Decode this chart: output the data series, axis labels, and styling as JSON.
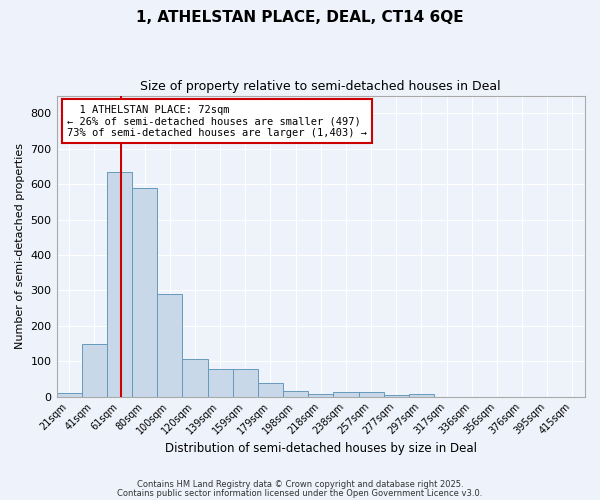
{
  "title1": "1, ATHELSTAN PLACE, DEAL, CT14 6QE",
  "title2": "Size of property relative to semi-detached houses in Deal",
  "xlabel": "Distribution of semi-detached houses by size in Deal",
  "ylabel": "Number of semi-detached properties",
  "bin_labels": [
    "21sqm",
    "41sqm",
    "61sqm",
    "80sqm",
    "100sqm",
    "120sqm",
    "139sqm",
    "159sqm",
    "179sqm",
    "198sqm",
    "218sqm",
    "238sqm",
    "257sqm",
    "277sqm",
    "297sqm",
    "317sqm",
    "336sqm",
    "356sqm",
    "376sqm",
    "395sqm",
    "415sqm"
  ],
  "bin_values": [
    10,
    148,
    635,
    590,
    290,
    105,
    78,
    78,
    37,
    15,
    8,
    12,
    12,
    5,
    7,
    0,
    0,
    0,
    0,
    0,
    0
  ],
  "property_label": "1 ATHELSTAN PLACE: 72sqm",
  "pct_smaller": 26,
  "pct_larger": 73,
  "count_smaller": 497,
  "count_larger": 1403,
  "bar_color": "#c8d8e8",
  "bar_edge_color": "#6699bb",
  "line_color": "#cc0000",
  "annotation_box_color": "#ffffff",
  "annotation_box_edge": "#cc0000",
  "background_color": "#eef2fa",
  "grid_color": "#ffffff",
  "ylim": [
    0,
    850
  ],
  "yticks": [
    0,
    100,
    200,
    300,
    400,
    500,
    600,
    700,
    800
  ],
  "footnote1": "Contains HM Land Registry data © Crown copyright and database right 2025.",
  "footnote2": "Contains public sector information licensed under the Open Government Licence v3.0."
}
